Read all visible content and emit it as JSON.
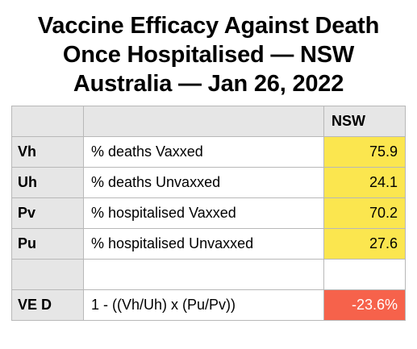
{
  "title": {
    "line1": "Vaccine Efficacy Against Death",
    "line2": "Once Hospitalised — NSW",
    "line3": "Australia — Jan 26, 2022"
  },
  "table": {
    "header": {
      "code": "",
      "description": "",
      "region": "NSW"
    },
    "rows": [
      {
        "code": "Vh",
        "description": "% deaths Vaxxed",
        "value": "75.9"
      },
      {
        "code": "Uh",
        "description": "% deaths Unvaxxed",
        "value": "24.1"
      },
      {
        "code": "Pv",
        "description": "% hospitalised Vaxxed",
        "value": "70.2"
      },
      {
        "code": "Pu",
        "description": "% hospitalised Unvaxxed",
        "value": "27.6"
      },
      {
        "code": "",
        "description": "",
        "value": ""
      },
      {
        "code": "VE D",
        "description": "1 - ((Vh/Uh) x (Pu/Pv))",
        "value": "-23.6%"
      }
    ]
  },
  "colors": {
    "header_bg": "#e6e6e6",
    "value_bg": "#fbe64f",
    "result_bg": "#f6624b",
    "result_text": "#ffffff",
    "border": "#b8b8b8"
  }
}
